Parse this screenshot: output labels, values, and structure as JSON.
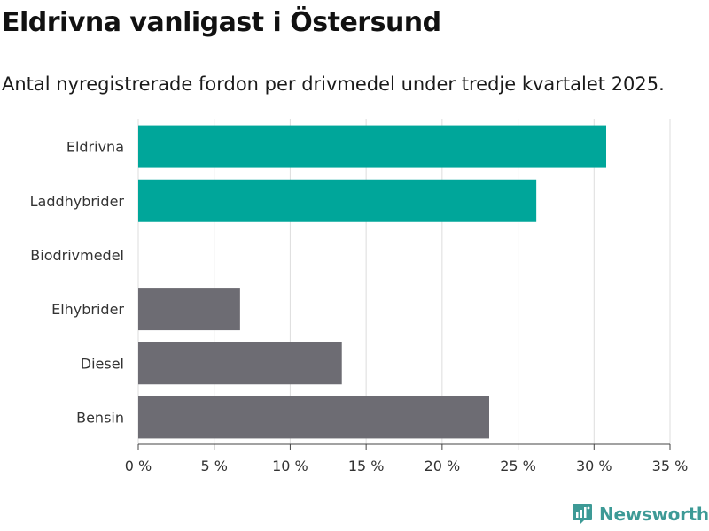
{
  "header": {
    "title": "Eldrivna vanligast i Östersund",
    "subtitle": "Antal nyregistrerade fordon per drivmedel under tredje kvartalet 2025."
  },
  "brand": {
    "name": "Newsworthy"
  },
  "colors": {
    "highlight": "#00a69a",
    "neutral": "#6d6c73",
    "grid": "#dddddd",
    "text": "#333333"
  },
  "chart_data": {
    "type": "bar",
    "orientation": "horizontal",
    "title": "Eldrivna vanligast i Östersund",
    "subtitle": "Antal nyregistrerade fordon per drivmedel under tredje kvartalet 2025.",
    "xlabel": "",
    "ylabel": "",
    "categories": [
      "Eldrivna",
      "Laddhybrider",
      "Biodrivmedel",
      "Elhybrider",
      "Diesel",
      "Bensin"
    ],
    "values": [
      30.8,
      26.2,
      0,
      6.7,
      13.4,
      23.1
    ],
    "highlighted": [
      true,
      true,
      true,
      false,
      false,
      false
    ],
    "xlim": [
      0,
      35
    ],
    "ticks": [
      0,
      5,
      10,
      15,
      20,
      25,
      30,
      35
    ],
    "tick_labels": [
      "0 %",
      "5 %",
      "10 %",
      "15 %",
      "20 %",
      "25 %",
      "30 %",
      "35 %"
    ],
    "grid": true,
    "legend": "none"
  }
}
